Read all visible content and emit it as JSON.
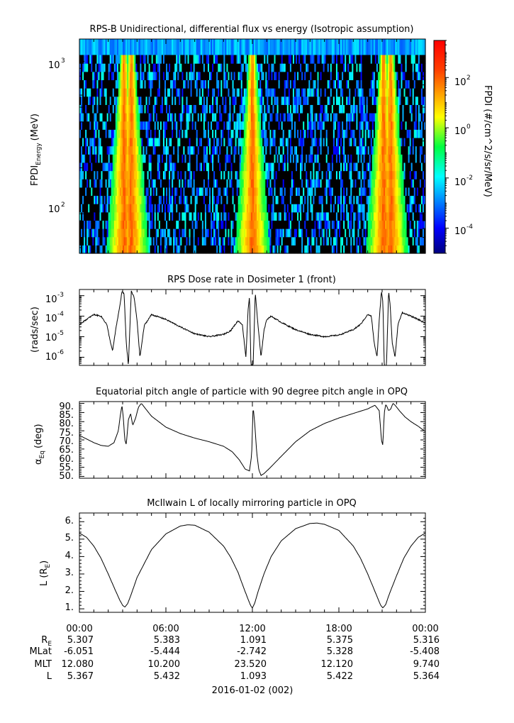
{
  "chart_data": [
    {
      "type": "heatmap",
      "title": "RPS-B  Unidirectional, differential flux vs energy (Isotropic assumption)",
      "ylabel": "FPDI",
      "ylabel_sub": "Energy",
      "ylabel_unit": "(MeV)",
      "yscale": "log",
      "ylim": [
        55,
        1400
      ],
      "ytick_base": "10",
      "yticks": [
        {
          "value": 100,
          "exp": "2"
        },
        {
          "value": 1000,
          "exp": "3"
        }
      ],
      "colorbar": {
        "label": "FPDI (#/cm^2/s/sr/MeV)",
        "scale": "log",
        "range": [
          1e-05,
          3000
        ],
        "tick_base": "10",
        "ticks": [
          {
            "value": 0.0001,
            "exp": "-4"
          },
          {
            "value": 0.01,
            "exp": "-2"
          },
          {
            "value": 1,
            "exp": "0"
          },
          {
            "value": 100,
            "exp": "2"
          }
        ]
      },
      "xlim_hours": [
        0,
        24
      ],
      "radiation_belt_peaks_hours": [
        3.1,
        3.6,
        12.0,
        21.1,
        21.6
      ],
      "energy_rows": 24,
      "time_columns": 240
    },
    {
      "type": "line",
      "title": "RPS  Dose rate in Dosimeter 1 (front)",
      "ylabel": "(rads/sec)",
      "yscale": "log",
      "ylim": [
        4e-07,
        0.002
      ],
      "ytick_base": "10",
      "yticks": [
        {
          "value": 1e-06,
          "exp": "-6"
        },
        {
          "value": 1e-05,
          "exp": "-5"
        },
        {
          "value": 0.0001,
          "exp": "-4"
        },
        {
          "value": 0.001,
          "exp": "-3"
        }
      ],
      "x_hours": [
        0,
        0.5,
        1,
        1.5,
        1.9,
        2.1,
        2.3,
        2.55,
        2.8,
        2.95,
        3.1,
        3.25,
        3.4,
        3.6,
        3.8,
        4.0,
        4.2,
        4.5,
        5,
        6,
        7,
        8,
        9,
        10,
        10.5,
        11.0,
        11.3,
        11.55,
        11.7,
        11.8,
        11.9,
        12.05,
        12.2,
        12.4,
        12.6,
        12.8,
        13.0,
        13.3,
        14,
        15,
        16,
        17,
        18,
        19,
        19.5,
        20.0,
        20.25,
        20.45,
        20.65,
        20.8,
        20.95,
        21.05,
        21.15,
        21.3,
        21.45,
        21.55,
        21.7,
        21.9,
        22.1,
        22.4,
        23,
        23.5,
        24
      ],
      "y_rads_per_sec": [
        4e-05,
        7e-05,
        0.00012,
        0.0001,
        4e-05,
        8e-06,
        2e-06,
        3e-05,
        0.0003,
        0.0016,
        0.0012,
        5e-06,
        4e-07,
        0.0017,
        0.0008,
        6e-05,
        1e-06,
        3.5e-05,
        0.00012,
        7e-05,
        3e-05,
        1.4e-05,
        1e-05,
        1.3e-05,
        2e-05,
        6e-05,
        4e-05,
        1e-06,
        0.0002,
        0.0009,
        4e-07,
        4e-07,
        0.0014,
        3e-05,
        1e-06,
        2e-05,
        7e-05,
        0.0001,
        5e-05,
        2.2e-05,
        1.3e-05,
        1e-05,
        1.2e-05,
        2.2e-05,
        4e-05,
        0.00012,
        0.0001,
        5e-06,
        1e-06,
        7e-05,
        0.0016,
        0.0005,
        4e-07,
        4e-07,
        0.0016,
        0.0004,
        5e-06,
        1e-06,
        4e-05,
        0.00015,
        0.0001,
        7e-05,
        4.5e-05
      ],
      "xlim_hours": [
        0,
        24
      ]
    },
    {
      "type": "line",
      "title": "Equatorial pitch angle of particle with 90 degree pitch angle in OPQ",
      "ylabel": "α",
      "ylabel_sub": "Eq",
      "ylabel_unit": "(deg)",
      "ylim": [
        49,
        91
      ],
      "yticks": [
        "50.",
        "55.",
        "60.",
        "65.",
        "70.",
        "75.",
        "80.",
        "85.",
        "90."
      ],
      "x_hours": [
        0,
        0.5,
        1.0,
        1.5,
        2.0,
        2.4,
        2.7,
        2.85,
        2.95,
        3.05,
        3.15,
        3.25,
        3.4,
        3.55,
        3.7,
        3.9,
        4.1,
        4.3,
        4.6,
        5,
        6,
        7,
        8,
        9,
        10,
        10.6,
        11.1,
        11.5,
        11.8,
        11.95,
        12.05,
        12.15,
        12.3,
        12.45,
        12.6,
        12.8,
        13.2,
        14,
        15,
        16,
        17,
        18,
        19,
        20,
        20.5,
        20.8,
        20.95,
        21.05,
        21.15,
        21.25,
        21.35,
        21.45,
        21.6,
        21.75,
        21.9,
        22.2,
        22.6,
        23,
        23.5,
        24
      ],
      "y_deg": [
        72.5,
        70.5,
        68.5,
        67,
        66.5,
        68.5,
        75,
        84,
        89,
        82,
        70,
        67.5,
        81,
        84.5,
        78,
        82,
        88,
        90,
        87,
        83,
        77,
        73.5,
        71,
        69,
        66.5,
        63.5,
        59,
        54,
        53,
        62,
        88.5,
        80,
        63,
        53.5,
        50.5,
        51.5,
        54.5,
        61,
        69,
        75,
        79,
        82,
        84.5,
        87,
        89,
        86,
        70,
        67,
        85,
        89.5,
        88,
        86,
        87,
        90,
        89,
        86,
        82.5,
        80,
        77.5,
        74.5
      ],
      "xlim_hours": [
        0,
        24
      ]
    },
    {
      "type": "line",
      "title": "McIlwain L of locally mirroring particle in OPQ",
      "ylabel": "L (R",
      "ylabel_sub": "E",
      "ylabel_close": ")",
      "ylim": [
        0.8,
        6.5
      ],
      "yticks": [
        "1.",
        "2.",
        "3.",
        "4.",
        "5.",
        "6."
      ],
      "x_hours": [
        0,
        0.5,
        1,
        1.5,
        2,
        2.5,
        2.8,
        3.0,
        3.15,
        3.35,
        3.6,
        4,
        5,
        6,
        7,
        7.5,
        8,
        9,
        10,
        10.5,
        11,
        11.4,
        11.7,
        11.9,
        12.0,
        12.15,
        12.4,
        12.8,
        13.3,
        14,
        15,
        16,
        16.5,
        17,
        18,
        19,
        19.5,
        20,
        20.4,
        20.7,
        20.9,
        21.05,
        21.25,
        21.5,
        22,
        22.5,
        23,
        23.5,
        24
      ],
      "y_RE": [
        5.35,
        5.1,
        4.6,
        3.9,
        3.0,
        2.05,
        1.5,
        1.2,
        1.1,
        1.3,
        1.85,
        2.8,
        4.4,
        5.3,
        5.75,
        5.82,
        5.8,
        5.4,
        4.6,
        3.95,
        3.1,
        2.2,
        1.55,
        1.15,
        1.05,
        1.3,
        2.0,
        3.0,
        4.0,
        4.9,
        5.6,
        5.9,
        5.92,
        5.85,
        5.5,
        4.6,
        3.9,
        3.0,
        2.2,
        1.6,
        1.2,
        1.05,
        1.25,
        1.85,
        2.9,
        3.9,
        4.6,
        5.1,
        5.35
      ],
      "xlim_hours": [
        0,
        24
      ]
    }
  ],
  "x_axis": {
    "time_labels": [
      "00:00",
      "06:00",
      "12:00",
      "18:00",
      "00:00"
    ],
    "ephemeris_rows": [
      {
        "label": "R",
        "label_sub": "E",
        "values": [
          "5.307",
          "5.383",
          "1.091",
          "5.375",
          "5.316"
        ]
      },
      {
        "label": "MLat",
        "label_sub": "",
        "values": [
          "-6.051",
          "-5.444",
          "-2.742",
          "5.328",
          "-5.408"
        ]
      },
      {
        "label": "MLT",
        "label_sub": "",
        "values": [
          "12.080",
          "10.200",
          "23.520",
          "12.120",
          "9.740"
        ]
      },
      {
        "label": "L",
        "label_sub": "",
        "values": [
          "5.367",
          "5.432",
          "1.093",
          "5.422",
          "5.364"
        ]
      }
    ],
    "date_label": "2016-01-02 (002)"
  }
}
